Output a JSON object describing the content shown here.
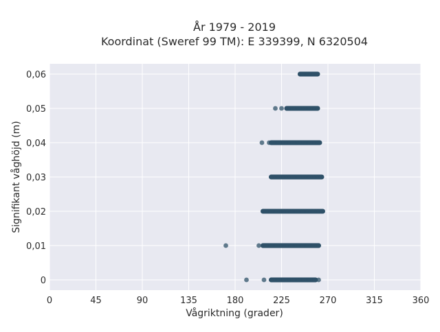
{
  "chart_data": {
    "type": "scatter",
    "title": "År 1979 - 2019",
    "subtitle": "Koordinat (Sweref 99 TM): E 339399, N 6320504",
    "xlabel": "Vågriktning (grader)",
    "ylabel": "Signifikant våghöjd (m)",
    "xlim": [
      0,
      360
    ],
    "ylim": [
      -0.003,
      0.063
    ],
    "x_ticks": [
      0,
      45,
      90,
      135,
      180,
      225,
      270,
      315,
      360
    ],
    "x_tick_labels": [
      "0",
      "45",
      "90",
      "135",
      "180",
      "225",
      "270",
      "315",
      "360"
    ],
    "y_ticks": [
      0,
      0.01,
      0.02,
      0.03,
      0.04,
      0.05,
      0.06
    ],
    "y_tick_labels": [
      "0",
      "0,01",
      "0,02",
      "0,03",
      "0,04",
      "0,05",
      "0,06"
    ],
    "grid": true,
    "background": "#e8e9f1",
    "marker_color": "#2f5168",
    "bands": [
      {
        "y": 0.06,
        "x_min": 243,
        "x_max": 260
      },
      {
        "y": 0.05,
        "x_min": 230,
        "x_max": 260
      },
      {
        "y": 0.04,
        "x_min": 215,
        "x_max": 262
      },
      {
        "y": 0.03,
        "x_min": 215,
        "x_max": 264
      },
      {
        "y": 0.02,
        "x_min": 207,
        "x_max": 265
      },
      {
        "y": 0.01,
        "x_min": 207,
        "x_max": 261
      },
      {
        "y": 0.0,
        "x_min": 215,
        "x_max": 258
      }
    ],
    "points": [
      {
        "x": 219,
        "y": 0.05
      },
      {
        "x": 225,
        "y": 0.05
      },
      {
        "x": 206,
        "y": 0.04
      },
      {
        "x": 213,
        "y": 0.04
      },
      {
        "x": 203,
        "y": 0.01
      },
      {
        "x": 171,
        "y": 0.01
      },
      {
        "x": 191,
        "y": 0.0
      },
      {
        "x": 208,
        "y": 0.0
      },
      {
        "x": 261,
        "y": 0.0
      }
    ]
  }
}
